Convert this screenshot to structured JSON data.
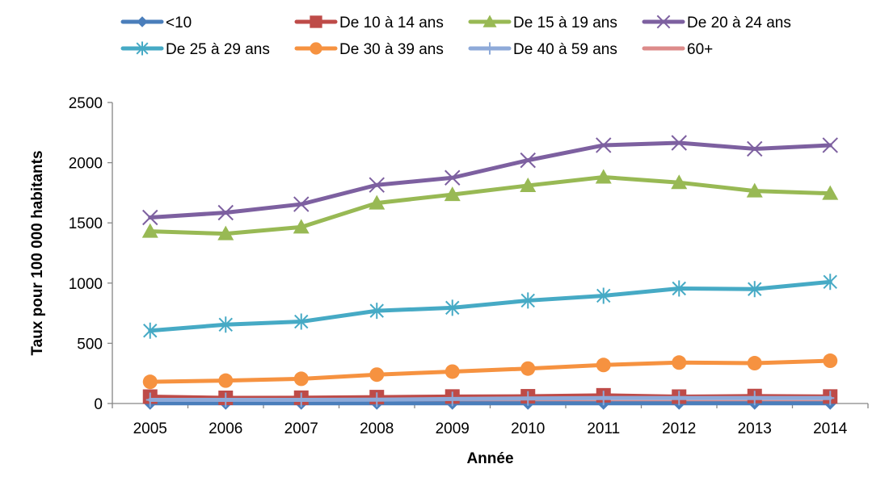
{
  "chart_data": {
    "type": "line",
    "title": "",
    "xlabel": "Année",
    "ylabel": "Taux pour 100 000 habitants",
    "ylim": [
      0,
      2500
    ],
    "yticks": [
      "0",
      "500",
      "1000",
      "1500",
      "2000",
      "2500"
    ],
    "grid": false,
    "legend_position": "top",
    "categories": [
      "2005",
      "2006",
      "2007",
      "2008",
      "2009",
      "2010",
      "2011",
      "2012",
      "2013",
      "2014"
    ],
    "series": [
      {
        "name": "<10",
        "color": "#4a7ebb",
        "marker": "diamond",
        "values": [
          2,
          2,
          2,
          2,
          2,
          2,
          2,
          2,
          2,
          2
        ]
      },
      {
        "name": "De 10 à 14 ans",
        "color": "#be4b48",
        "marker": "square",
        "values": [
          57,
          47,
          48,
          53,
          58,
          60,
          68,
          57,
          62,
          58
        ]
      },
      {
        "name": "De 15 à 19 ans",
        "color": "#98b954",
        "marker": "triangle",
        "values": [
          1430,
          1410,
          1465,
          1665,
          1735,
          1810,
          1880,
          1835,
          1765,
          1745
        ]
      },
      {
        "name": "De 20 à 24 ans",
        "color": "#7d60a0",
        "marker": "x",
        "values": [
          1545,
          1585,
          1655,
          1815,
          1875,
          2020,
          2145,
          2165,
          2115,
          2145
        ]
      },
      {
        "name": "De 25 à 29 ans",
        "color": "#46aac5",
        "marker": "star",
        "values": [
          605,
          655,
          680,
          770,
          795,
          855,
          895,
          955,
          950,
          1010
        ]
      },
      {
        "name": "De 30 à 39 ans",
        "color": "#f69240",
        "marker": "circle",
        "values": [
          180,
          190,
          205,
          240,
          265,
          290,
          320,
          340,
          335,
          355
        ]
      },
      {
        "name": "De 40 à 59 ans",
        "color": "#8eaad9",
        "marker": "plus",
        "values": [
          30,
          30,
          30,
          32,
          38,
          42,
          45,
          45,
          45,
          45
        ]
      },
      {
        "name": "60+",
        "color": "#dd8b8a",
        "marker": "none",
        "values": [
          12,
          12,
          12,
          12,
          12,
          12,
          12,
          12,
          12,
          12
        ]
      }
    ]
  }
}
